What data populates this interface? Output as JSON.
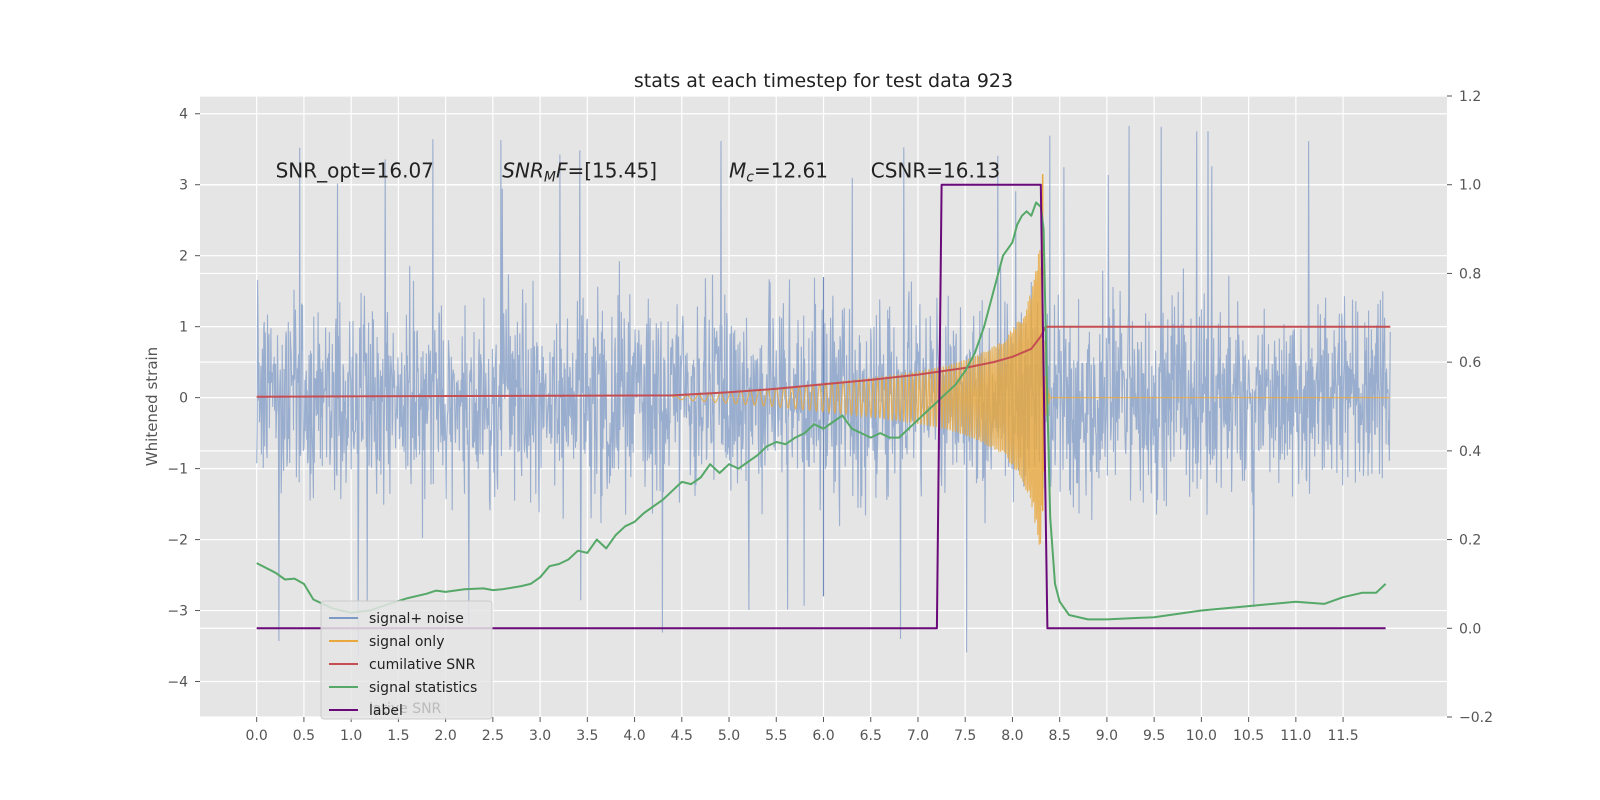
{
  "chart_data": {
    "type": "line",
    "title": "stats at each timestep for test data 923",
    "ylabel": "Whitened strain",
    "xlabel": "",
    "xlim": [
      -0.6,
      12.6
    ],
    "ylim": [
      -4.5,
      4.25
    ],
    "y2lim": [
      -0.2,
      1.2
    ],
    "grid": true,
    "x_tick_labels": [
      "0.0",
      "0.5",
      "1.0",
      "1.5",
      "2.0",
      "2.5",
      "3.0",
      "3.5",
      "4.0",
      "4.5",
      "5.0",
      "5.5",
      "6.0",
      "6.5",
      "7.0",
      "7.5",
      "8.0",
      "8.5",
      "9.0",
      "9.5",
      "10.0",
      "10.5",
      "11.0",
      "11.5"
    ],
    "y_tick_labels": [
      "4",
      "3",
      "2",
      "1",
      "0",
      "−1",
      "−2",
      "−3",
      "−4"
    ],
    "y2_tick_labels": [
      "1.2",
      "1.0",
      "0.8",
      "0.6",
      "0.4",
      "0.2",
      "0.0",
      "−0.2"
    ],
    "annotations": [
      {
        "parts": [
          {
            "t": "SNR_opt=16.07",
            "i": false
          }
        ],
        "x": 0.2,
        "y": 3.1
      },
      {
        "parts": [
          {
            "t": "SNR",
            "i": true
          },
          {
            "t": "M",
            "i": true,
            "sub": true
          },
          {
            "t": "F",
            "i": true
          },
          {
            "t": "=[15.45]",
            "i": false
          }
        ],
        "x": 2.6,
        "y": 3.1
      },
      {
        "parts": [
          {
            "t": "M",
            "i": true
          },
          {
            "t": "c",
            "i": true,
            "sub": true
          },
          {
            "t": "=12.61",
            "i": false
          }
        ],
        "x": 5.0,
        "y": 3.1
      },
      {
        "parts": [
          {
            "t": "CSNR=16.13",
            "i": false
          }
        ],
        "x": 6.5,
        "y": 3.1
      }
    ],
    "legend": {
      "placement": "lower-left",
      "entries": [
        "signal+ noise",
        "signal only",
        "cumilative SNR",
        "signal statistics",
        "label"
      ],
      "ghost_text": "lative SNR"
    },
    "series": [
      {
        "name": "signal+ noise",
        "color": "#7f99c5",
        "axis": "left",
        "kind": "noise",
        "x_range": [
          0.0,
          12.0
        ],
        "envelope": [
          -2.0,
          2.0
        ],
        "peak_min": -3.8,
        "peak_max": 3.85
      },
      {
        "name": "signal only",
        "color": "#e9a83d",
        "axis": "left",
        "kind": "chirp",
        "x": [
          4.4,
          5.0,
          5.5,
          6.0,
          6.5,
          7.0,
          7.3,
          7.6,
          7.9,
          8.1,
          8.2,
          8.3,
          8.35,
          8.4,
          12.0
        ],
        "amplitude": [
          0.02,
          0.08,
          0.13,
          0.2,
          0.27,
          0.37,
          0.45,
          0.58,
          0.8,
          1.15,
          1.5,
          2.2,
          0.3,
          0.0,
          0.0
        ],
        "peak": 3.15
      },
      {
        "name": "cumilative SNR",
        "color": "#c44e52",
        "axis": "right",
        "x": [
          0.0,
          4.4,
          5.0,
          5.5,
          6.0,
          6.5,
          7.0,
          7.5,
          7.8,
          8.0,
          8.2,
          8.3,
          8.35,
          12.0
        ],
        "y": [
          0.522,
          0.525,
          0.532,
          0.54,
          0.55,
          0.56,
          0.572,
          0.587,
          0.6,
          0.612,
          0.63,
          0.658,
          0.68,
          0.68
        ]
      },
      {
        "name": "signal statistics",
        "color": "#55a868",
        "axis": "right",
        "x": [
          0.0,
          0.2,
          0.3,
          0.4,
          0.5,
          0.6,
          0.8,
          1.0,
          1.2,
          1.4,
          1.6,
          1.8,
          1.9,
          2.0,
          2.2,
          2.4,
          2.5,
          2.6,
          2.8,
          2.9,
          3.0,
          3.1,
          3.2,
          3.3,
          3.4,
          3.5,
          3.6,
          3.7,
          3.8,
          3.9,
          4.0,
          4.1,
          4.2,
          4.3,
          4.4,
          4.5,
          4.6,
          4.7,
          4.8,
          4.9,
          5.0,
          5.1,
          5.2,
          5.3,
          5.4,
          5.5,
          5.6,
          5.7,
          5.8,
          5.9,
          6.0,
          6.1,
          6.2,
          6.3,
          6.4,
          6.5,
          6.6,
          6.7,
          6.8,
          6.9,
          7.0,
          7.1,
          7.2,
          7.3,
          7.4,
          7.5,
          7.6,
          7.7,
          7.8,
          7.9,
          8.0,
          8.05,
          8.1,
          8.15,
          8.2,
          8.25,
          8.3,
          8.33,
          8.36,
          8.4,
          8.45,
          8.5,
          8.6,
          8.8,
          9.0,
          9.5,
          10.0,
          10.5,
          11.0,
          11.3,
          11.5,
          11.7,
          11.85,
          11.95
        ],
        "y": [
          0.147,
          0.125,
          0.11,
          0.112,
          0.1,
          0.065,
          0.045,
          0.035,
          0.04,
          0.055,
          0.068,
          0.078,
          0.085,
          0.082,
          0.088,
          0.09,
          0.086,
          0.088,
          0.095,
          0.1,
          0.115,
          0.14,
          0.145,
          0.155,
          0.175,
          0.17,
          0.2,
          0.18,
          0.21,
          0.23,
          0.24,
          0.26,
          0.275,
          0.29,
          0.31,
          0.33,
          0.325,
          0.34,
          0.37,
          0.35,
          0.37,
          0.36,
          0.375,
          0.39,
          0.41,
          0.42,
          0.415,
          0.43,
          0.44,
          0.46,
          0.45,
          0.465,
          0.48,
          0.45,
          0.44,
          0.43,
          0.44,
          0.43,
          0.43,
          0.45,
          0.47,
          0.49,
          0.51,
          0.53,
          0.55,
          0.58,
          0.62,
          0.68,
          0.76,
          0.84,
          0.87,
          0.91,
          0.93,
          0.94,
          0.93,
          0.96,
          0.95,
          0.9,
          0.6,
          0.25,
          0.1,
          0.06,
          0.03,
          0.02,
          0.02,
          0.025,
          0.04,
          0.05,
          0.06,
          0.055,
          0.07,
          0.08,
          0.08,
          0.1
        ]
      },
      {
        "name": "label",
        "color": "#6a0a7a",
        "axis": "right",
        "x": [
          0.0,
          7.2,
          7.25,
          8.3,
          8.37,
          11.95
        ],
        "y": [
          0.0,
          0.0,
          1.0,
          1.0,
          0.0,
          0.0
        ]
      }
    ]
  }
}
